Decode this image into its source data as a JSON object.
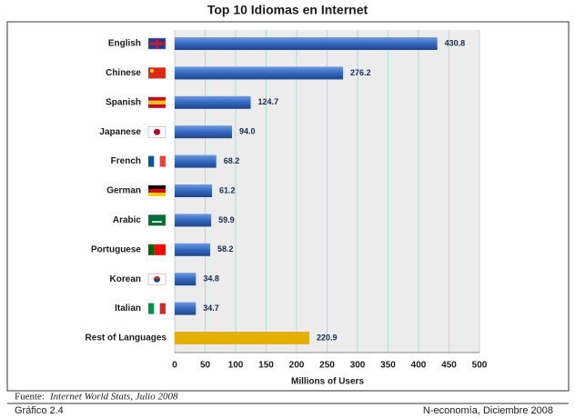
{
  "chart_data": {
    "type": "bar",
    "orientation": "horizontal",
    "title": "Top 10 Idiomas en Internet",
    "categories": [
      "English",
      "Chinese",
      "Spanish",
      "Japanese",
      "French",
      "German",
      "Arabic",
      "Portuguese",
      "Korean",
      "Italian",
      "Rest of Languages"
    ],
    "values": [
      430.8,
      276.2,
      124.7,
      94,
      68.2,
      61.2,
      59.9,
      58.2,
      34.8,
      34.7,
      220.9
    ],
    "value_labels": [
      "430.8",
      "276.2",
      "124.7",
      "94.0",
      "68.2",
      "61.2",
      "59.9",
      "58.2",
      "34.8",
      "34.7",
      "220.9"
    ],
    "colors": [
      "#3468c0",
      "#3468c0",
      "#3468c0",
      "#3468c0",
      "#3468c0",
      "#3468c0",
      "#3468c0",
      "#3468c0",
      "#3468c0",
      "#3468c0",
      "#e6b000"
    ],
    "xlim": [
      0,
      500
    ],
    "xticks": [
      0,
      50,
      100,
      150,
      200,
      250,
      300,
      350,
      400,
      450,
      500
    ],
    "xlabel": "Millions of Users",
    "grid": true
  },
  "footer": {
    "source_label": "Fuente:",
    "source_text": "Internet World Stats, Julio 2008",
    "figure": "Gráfico 2.4",
    "credit": "N-economía, Diciembre 2008"
  }
}
